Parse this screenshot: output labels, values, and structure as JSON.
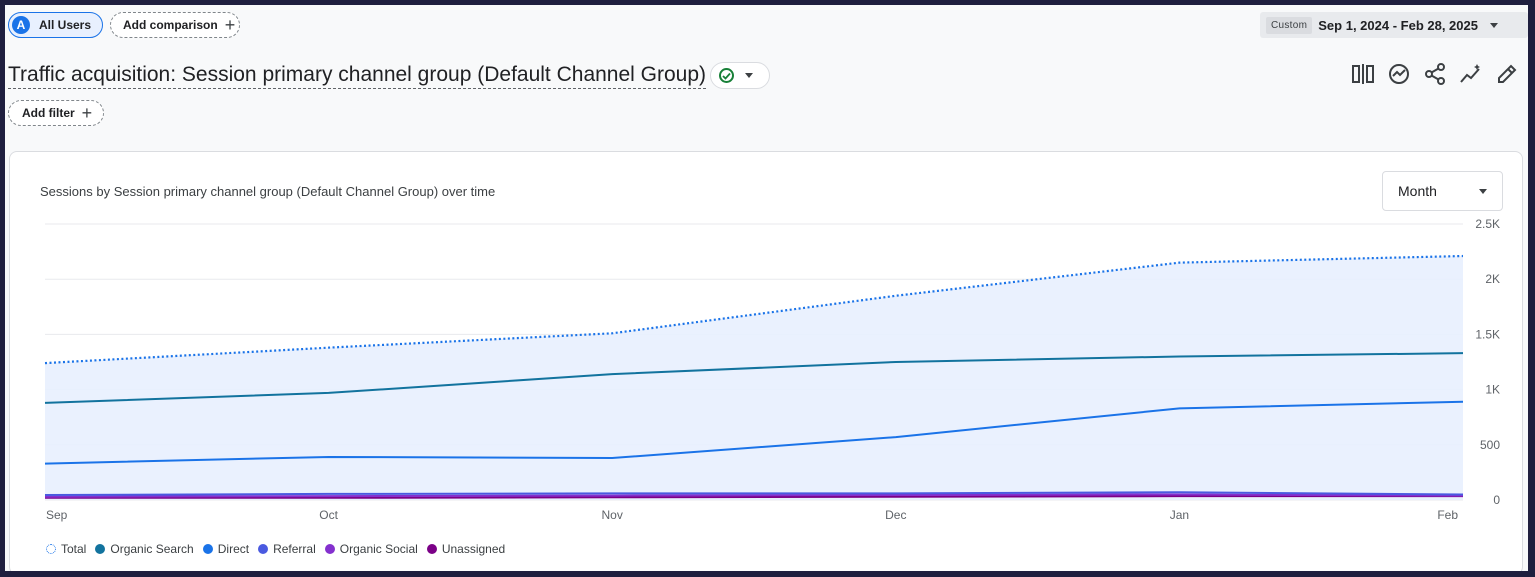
{
  "topbar": {
    "segment_avatar": "A",
    "segment_label": "All Users",
    "add_comparison_label": "Add comparison",
    "custom_tag": "Custom",
    "date_range": "Sep 1, 2024 - Feb 28, 2025"
  },
  "report": {
    "title": "Traffic acquisition: Session primary channel group (Default Channel Group)",
    "add_filter_label": "Add filter",
    "toolbar_icons": [
      "compare-icon",
      "insights-icon",
      "share-icon",
      "trend-icon",
      "edit-icon"
    ]
  },
  "card": {
    "title": "Sessions by Session primary channel group (Default Channel Group) over time",
    "granularity": "Month"
  },
  "chart_data": {
    "type": "line",
    "x": [
      "Sep",
      "Oct",
      "Nov",
      "Dec",
      "Jan",
      "Feb"
    ],
    "ylim": [
      0,
      2500
    ],
    "yticks": [
      "0",
      "500",
      "1K",
      "1.5K",
      "2K",
      "2.5K"
    ],
    "ytick_values": [
      0,
      500,
      1000,
      1500,
      2000,
      2500
    ],
    "axis_position": "right",
    "grid": true,
    "legend_position": "bottom-left",
    "series": [
      {
        "name": "Total",
        "values": [
          1240,
          1380,
          1510,
          1850,
          2150,
          2210
        ],
        "color": "#1a73e8",
        "style": "dotted",
        "fill": true
      },
      {
        "name": "Organic Search",
        "values": [
          880,
          970,
          1140,
          1250,
          1300,
          1330
        ],
        "color": "#12739e",
        "style": "solid"
      },
      {
        "name": "Direct",
        "values": [
          330,
          390,
          380,
          570,
          830,
          890
        ],
        "color": "#1a73e8",
        "style": "solid"
      },
      {
        "name": "Referral",
        "values": [
          45,
          55,
          60,
          60,
          70,
          50
        ],
        "color": "#4a5ae0",
        "style": "solid"
      },
      {
        "name": "Organic Social",
        "values": [
          30,
          35,
          40,
          45,
          50,
          40
        ],
        "color": "#8430ce",
        "style": "solid"
      },
      {
        "name": "Unassigned",
        "values": [
          20,
          20,
          25,
          30,
          35,
          35
        ],
        "color": "#7b0087",
        "style": "solid"
      }
    ]
  }
}
